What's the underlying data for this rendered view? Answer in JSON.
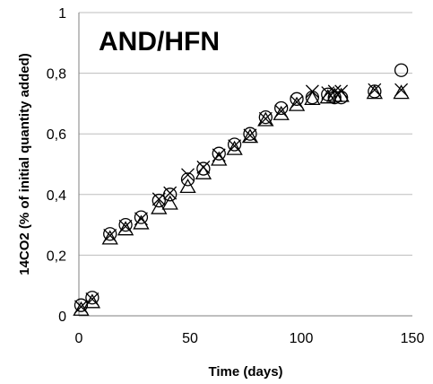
{
  "chart_data": {
    "type": "scatter",
    "title": "AND/HFN",
    "xlabel": "Time (days)",
    "ylabel": "14CO2 (% of initial quantity added)",
    "xlim": [
      0,
      150
    ],
    "ylim": [
      0,
      1
    ],
    "xticks": [
      0,
      50,
      100,
      150
    ],
    "yticks": [
      0,
      0.2,
      0.4,
      0.6,
      0.8,
      1
    ],
    "ytick_labels": [
      "0",
      "0,2",
      "0,4",
      "0,6",
      "0,8",
      "1"
    ],
    "grid": "horizontal",
    "series": [
      {
        "marker": "circle",
        "x": [
          1,
          6,
          14,
          21,
          28,
          36,
          41,
          49,
          56,
          63,
          70,
          77,
          84,
          91,
          98,
          105,
          112,
          115,
          118,
          133,
          145
        ],
        "y": [
          0.035,
          0.06,
          0.27,
          0.3,
          0.325,
          0.38,
          0.4,
          0.45,
          0.485,
          0.535,
          0.565,
          0.6,
          0.655,
          0.685,
          0.715,
          0.72,
          0.73,
          0.72,
          0.72,
          0.74,
          0.81
        ]
      },
      {
        "marker": "x",
        "x": [
          1,
          6,
          14,
          21,
          28,
          36,
          41,
          49,
          56,
          63,
          70,
          77,
          84,
          91,
          98,
          105,
          112,
          115,
          118,
          133,
          145
        ],
        "y": [
          0.03,
          0.055,
          0.265,
          0.295,
          0.32,
          0.385,
          0.405,
          0.465,
          0.49,
          0.53,
          0.56,
          0.595,
          0.65,
          0.675,
          0.705,
          0.74,
          0.735,
          0.74,
          0.74,
          0.745,
          0.745
        ]
      },
      {
        "marker": "triangle",
        "x": [
          1,
          6,
          14,
          21,
          28,
          36,
          41,
          49,
          56,
          63,
          70,
          77,
          84,
          91,
          98,
          105,
          112,
          115,
          118,
          133,
          145
        ],
        "y": [
          0.02,
          0.045,
          0.255,
          0.285,
          0.305,
          0.355,
          0.37,
          0.425,
          0.47,
          0.515,
          0.55,
          0.59,
          0.645,
          0.665,
          0.695,
          0.715,
          0.72,
          0.725,
          0.725,
          0.735,
          0.735
        ]
      }
    ]
  }
}
